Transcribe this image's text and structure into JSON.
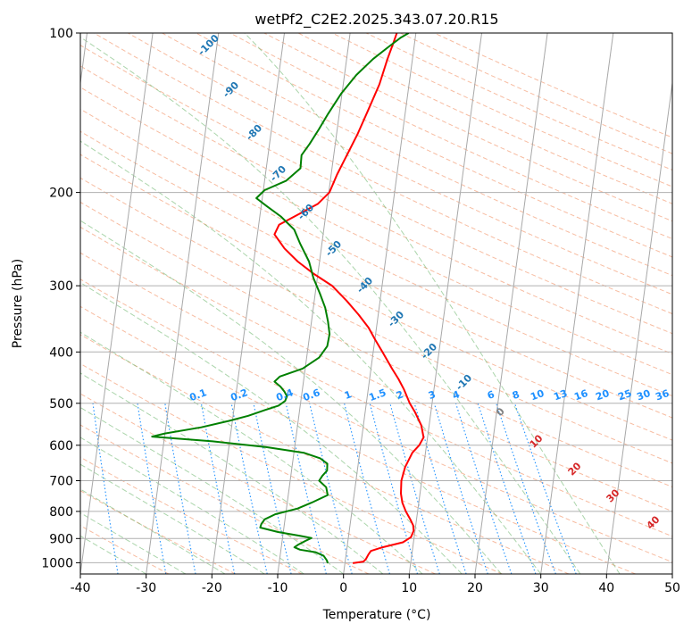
{
  "chart_data": {
    "type": "line",
    "subtype": "skew-T log-P diagram",
    "title": "wetPf2_C2E2.2025.343.07.20.R15",
    "xlabel": "Temperature (°C)",
    "ylabel": "Pressure (hPa)",
    "xlim": [
      -40,
      50
    ],
    "ylim": [
      1050,
      100
    ],
    "y_scale": "log",
    "x_ticks": [
      "-40",
      "-30",
      "-20",
      "-10",
      "0",
      "10",
      "20",
      "30",
      "40",
      "50"
    ],
    "y_ticks": [
      {
        "p": 1000,
        "label": "1000"
      },
      {
        "p": 900,
        "label": "900"
      },
      {
        "p": 800,
        "label": "800"
      },
      {
        "p": 700,
        "label": "700"
      },
      {
        "p": 600,
        "label": "600"
      },
      {
        "p": 500,
        "label": "500"
      },
      {
        "p": 400,
        "label": "400"
      },
      {
        "p": 300,
        "label": "300"
      },
      {
        "p": 200,
        "label": "200"
      },
      {
        "p": 100,
        "label": "100"
      }
    ],
    "grid": true,
    "series": [
      {
        "color": "#ff0000",
        "points": [
          [
            1002,
            1.2
          ],
          [
            995,
            2.8
          ],
          [
            985,
            3.1
          ],
          [
            965,
            3.4
          ],
          [
            950,
            3.7
          ],
          [
            935,
            5.4
          ],
          [
            915,
            8.4
          ],
          [
            895,
            9.5
          ],
          [
            870,
            9.8
          ],
          [
            850,
            9.6
          ],
          [
            830,
            9.1
          ],
          [
            800,
            8.2
          ],
          [
            770,
            7.5
          ],
          [
            740,
            7.1
          ],
          [
            700,
            6.9
          ],
          [
            660,
            7.2
          ],
          [
            620,
            8.0
          ],
          [
            600,
            8.9
          ],
          [
            580,
            9.4
          ],
          [
            550,
            8.8
          ],
          [
            520,
            7.6
          ],
          [
            500,
            6.6
          ],
          [
            470,
            5.4
          ],
          [
            450,
            4.4
          ],
          [
            430,
            3.2
          ],
          [
            400,
            1.4
          ],
          [
            380,
            0.1
          ],
          [
            360,
            -1.2
          ],
          [
            340,
            -3.0
          ],
          [
            320,
            -5.1
          ],
          [
            300,
            -7.6
          ],
          [
            285,
            -10.6
          ],
          [
            270,
            -13.3
          ],
          [
            255,
            -15.6
          ],
          [
            240,
            -17.4
          ],
          [
            230,
            -16.9
          ],
          [
            220,
            -14.2
          ],
          [
            210,
            -11.4
          ],
          [
            200,
            -9.9
          ],
          [
            185,
            -9.1
          ],
          [
            170,
            -8.0
          ],
          [
            155,
            -6.8
          ],
          [
            140,
            -5.7
          ],
          [
            125,
            -4.5
          ],
          [
            112,
            -3.8
          ],
          [
            104,
            -3.2
          ],
          [
            100,
            -2.9
          ]
        ]
      },
      {
        "color": "#008000",
        "points": [
          [
            1002,
            -2.6
          ],
          [
            990,
            -2.8
          ],
          [
            970,
            -3.4
          ],
          [
            955,
            -4.7
          ],
          [
            945,
            -7.1
          ],
          [
            935,
            -8.0
          ],
          [
            925,
            -7.5
          ],
          [
            910,
            -6.5
          ],
          [
            898,
            -5.6
          ],
          [
            890,
            -7.3
          ],
          [
            875,
            -10.8
          ],
          [
            858,
            -13.6
          ],
          [
            845,
            -13.5
          ],
          [
            828,
            -13.1
          ],
          [
            810,
            -11.6
          ],
          [
            790,
            -8.3
          ],
          [
            770,
            -6.3
          ],
          [
            745,
            -4.0
          ],
          [
            720,
            -4.4
          ],
          [
            700,
            -5.6
          ],
          [
            685,
            -5.2
          ],
          [
            670,
            -4.6
          ],
          [
            650,
            -4.7
          ],
          [
            635,
            -5.9
          ],
          [
            620,
            -8.5
          ],
          [
            605,
            -14.3
          ],
          [
            590,
            -22.6
          ],
          [
            578,
            -31.9
          ],
          [
            570,
            -30.0
          ],
          [
            555,
            -24.6
          ],
          [
            540,
            -20.6
          ],
          [
            528,
            -17.7
          ],
          [
            515,
            -15.3
          ],
          [
            505,
            -13.3
          ],
          [
            495,
            -12.4
          ],
          [
            485,
            -12.2
          ],
          [
            475,
            -12.7
          ],
          [
            465,
            -13.4
          ],
          [
            455,
            -14.4
          ],
          [
            445,
            -13.7
          ],
          [
            430,
            -10.4
          ],
          [
            410,
            -8.1
          ],
          [
            390,
            -7.1
          ],
          [
            370,
            -7.0
          ],
          [
            350,
            -7.5
          ],
          [
            330,
            -8.2
          ],
          [
            310,
            -9.3
          ],
          [
            290,
            -10.6
          ],
          [
            270,
            -11.6
          ],
          [
            250,
            -13.3
          ],
          [
            235,
            -14.5
          ],
          [
            222,
            -16.8
          ],
          [
            212,
            -19.2
          ],
          [
            205,
            -20.9
          ],
          [
            198,
            -19.8
          ],
          [
            190,
            -16.7
          ],
          [
            180,
            -14.8
          ],
          [
            170,
            -14.9
          ],
          [
            162,
            -13.9
          ],
          [
            152,
            -12.8
          ],
          [
            142,
            -11.7
          ],
          [
            130,
            -10.1
          ],
          [
            120,
            -8.2
          ],
          [
            112,
            -6.0
          ],
          [
            106,
            -3.8
          ],
          [
            102,
            -2.2
          ],
          [
            100,
            -1.1
          ]
        ]
      }
    ],
    "annotations": {
      "dry_adiabats": [
        {
          "label": "-100",
          "color": "#1f77b4"
        },
        {
          "label": "-90",
          "color": "#1f77b4"
        },
        {
          "label": "-80",
          "color": "#1f77b4"
        },
        {
          "label": "-70",
          "color": "#1f77b4"
        },
        {
          "label": "-60",
          "color": "#1f77b4"
        },
        {
          "label": "-50",
          "color": "#1f77b4"
        },
        {
          "label": "-40",
          "color": "#1f77b4"
        },
        {
          "label": "-30",
          "color": "#1f77b4"
        },
        {
          "label": "-20",
          "color": "#1f77b4"
        },
        {
          "label": "-10",
          "color": "#1f77b4"
        }
      ],
      "mixing_ratio_labels": [
        "0.1",
        "0.2",
        "0.4",
        "0.6",
        "1",
        "1.5",
        "2",
        "3",
        "4",
        "6",
        "8",
        "10",
        "13",
        "16",
        "20",
        "25",
        "30",
        "36"
      ],
      "mixing_ratio_color": "#1e90ff",
      "isotherm_labels": [
        {
          "label": "0",
          "color": "#808080"
        },
        {
          "label": "10",
          "color": "#d62728"
        },
        {
          "label": "20",
          "color": "#d62728"
        },
        {
          "label": "30",
          "color": "#d62728"
        },
        {
          "label": "40",
          "color": "#d62728"
        }
      ]
    }
  }
}
